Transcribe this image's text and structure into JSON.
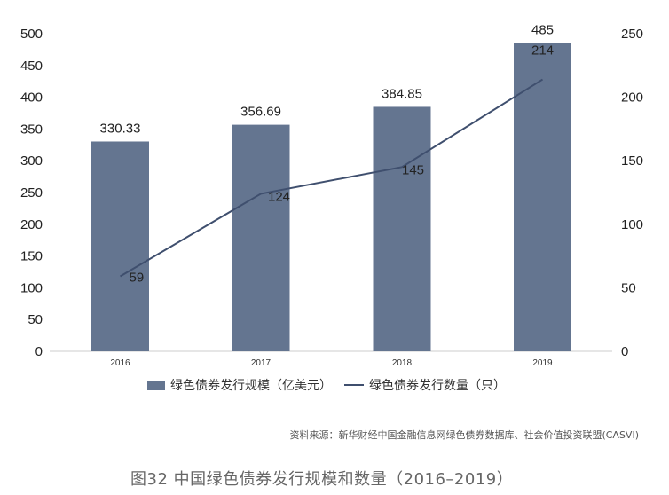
{
  "chart_data": {
    "type": "bar+line",
    "categories": [
      "2016",
      "2017",
      "2018",
      "2019"
    ],
    "series": [
      {
        "name": "绿色债券发行规模（亿美元）",
        "type": "bar",
        "axis": "left",
        "values": [
          330.33,
          356.69,
          384.85,
          485
        ],
        "color": "#647590"
      },
      {
        "name": "绿色债券发行数量（只）",
        "type": "line",
        "axis": "right",
        "values": [
          59,
          124,
          145,
          214
        ],
        "color": "#3f4f6e"
      }
    ],
    "data_labels": {
      "bar": [
        "330.33",
        "356.69",
        "384.85",
        "485"
      ],
      "line": [
        "59",
        "124",
        "145",
        "214"
      ]
    },
    "left_axis": {
      "ylim": [
        0,
        500
      ],
      "ticks": [
        0,
        50,
        100,
        150,
        200,
        250,
        300,
        350,
        400,
        450,
        500
      ]
    },
    "right_axis": {
      "ylim": [
        0,
        250
      ],
      "ticks": [
        0,
        50,
        100,
        150,
        200,
        250
      ]
    },
    "grid": false,
    "legend_position": "bottom",
    "title": "图32  中国绿色债券发行规模和数量（2016–2019）",
    "xlabel": "",
    "ylabel": ""
  },
  "legend": {
    "bar_label": "绿色债券发行规模（亿美元）",
    "line_label": "绿色债券发行数量（只）"
  },
  "source": "资料来源：新华财经中国金融信息网绿色债券数据库、社会价值投资联盟(CASVI)",
  "caption": "图32  中国绿色债券发行规模和数量（2016–2019）",
  "colors": {
    "bar": "#647590",
    "line": "#3f4f6e",
    "axis": "#cccccc"
  }
}
